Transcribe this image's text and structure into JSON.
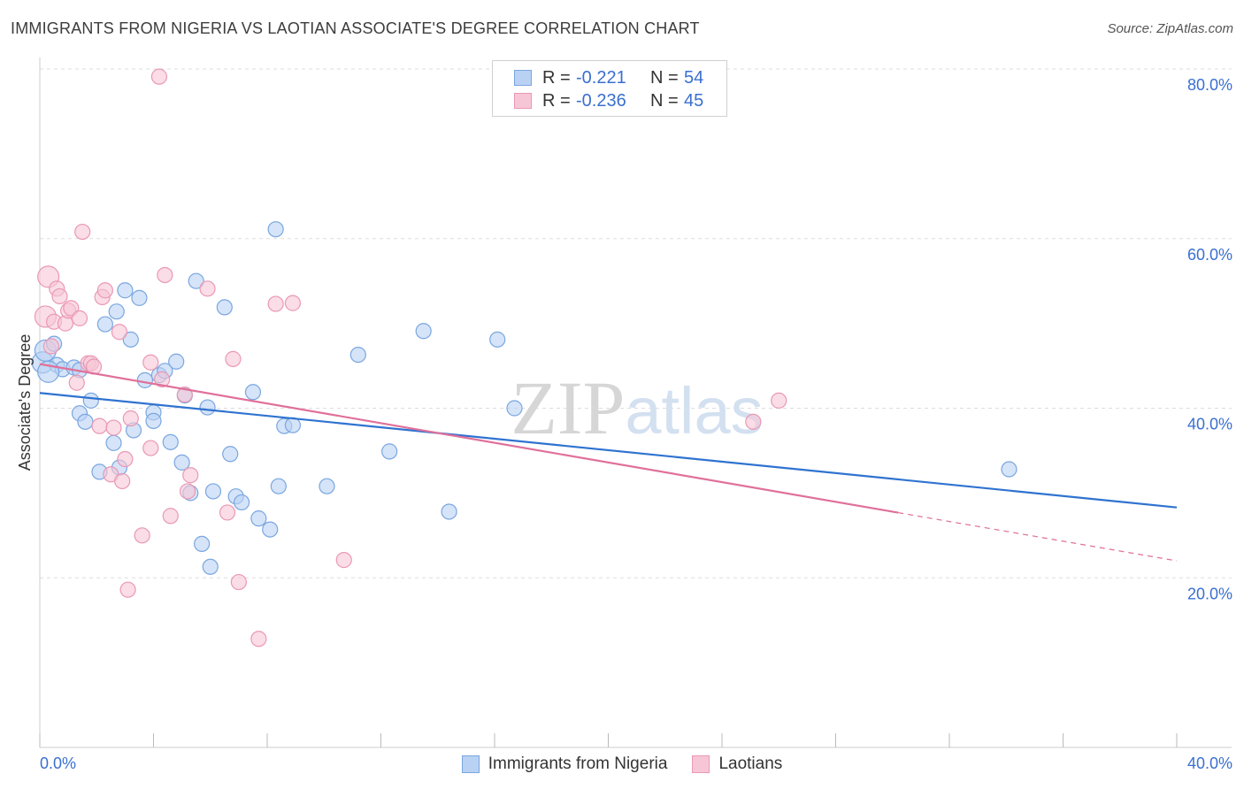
{
  "title": "IMMIGRANTS FROM NIGERIA VS LAOTIAN ASSOCIATE'S DEGREE CORRELATION CHART",
  "source": "Source: ZipAtlas.com",
  "legend": {
    "rows": [
      {
        "r_label": "R =",
        "r_value": "-0.221",
        "n_label": "N =",
        "n_value": "54"
      },
      {
        "r_label": "R =",
        "r_value": "-0.236",
        "n_label": "N =",
        "n_value": "45"
      }
    ]
  },
  "bottom_legend": [
    "Immigrants from Nigeria",
    "Laotians"
  ],
  "colors": {
    "blue_fill": "#b9d2f3",
    "blue_stroke": "#7aa6e0",
    "blue_line": "#2f73d0",
    "pink_fill": "#f7c6d6",
    "pink_stroke": "#ea98b5",
    "pink_line": "#e0709a",
    "axis_text": "#3a6fd0",
    "grid": "#dddddd"
  },
  "chart_data": {
    "type": "scatter",
    "title": "IMMIGRANTS FROM NIGERIA VS LAOTIAN ASSOCIATE'S DEGREE CORRELATION CHART",
    "xlabel": "",
    "ylabel": "Associate's Degree",
    "xlim": [
      0,
      40
    ],
    "ylim": [
      0,
      80
    ],
    "x_tick_labels": [
      "0.0%",
      "40.0%"
    ],
    "y_tick_labels": [
      "20.0%",
      "40.0%",
      "60.0%",
      "80.0%"
    ],
    "y_ticks": [
      20,
      40,
      60,
      80
    ],
    "grid": true,
    "watermark": "ZIPatlas",
    "series": [
      {
        "name": "Immigrants from Nigeria",
        "color": "#b9d2f3",
        "trend": {
          "x": [
            0,
            40
          ],
          "y": [
            41.8,
            28.3
          ],
          "dashed_from": null
        },
        "points": [
          [
            0.1,
            45.4
          ],
          [
            0.2,
            46.8
          ],
          [
            0.5,
            47.6
          ],
          [
            0.6,
            45.1
          ],
          [
            0.8,
            44.6
          ],
          [
            1.2,
            44.8
          ],
          [
            1.4,
            44.5
          ],
          [
            1.4,
            39.4
          ],
          [
            1.6,
            38.4
          ],
          [
            1.8,
            40.9
          ],
          [
            2.1,
            32.5
          ],
          [
            2.3,
            49.9
          ],
          [
            2.6,
            35.9
          ],
          [
            2.7,
            51.4
          ],
          [
            2.8,
            33.0
          ],
          [
            3.0,
            53.9
          ],
          [
            3.2,
            48.1
          ],
          [
            3.3,
            37.4
          ],
          [
            3.5,
            53.0
          ],
          [
            3.7,
            43.3
          ],
          [
            4.0,
            39.5
          ],
          [
            4.0,
            38.5
          ],
          [
            4.2,
            43.9
          ],
          [
            4.4,
            44.4
          ],
          [
            4.6,
            36.0
          ],
          [
            4.8,
            45.5
          ],
          [
            5.0,
            33.6
          ],
          [
            5.1,
            41.5
          ],
          [
            5.3,
            30.0
          ],
          [
            5.5,
            55.0
          ],
          [
            5.7,
            24.0
          ],
          [
            5.9,
            40.1
          ],
          [
            6.0,
            21.3
          ],
          [
            6.1,
            30.2
          ],
          [
            6.5,
            51.9
          ],
          [
            6.7,
            34.6
          ],
          [
            6.9,
            29.6
          ],
          [
            7.1,
            28.9
          ],
          [
            7.5,
            41.9
          ],
          [
            7.7,
            27.0
          ],
          [
            8.1,
            25.7
          ],
          [
            8.3,
            61.1
          ],
          [
            8.4,
            30.8
          ],
          [
            8.6,
            37.9
          ],
          [
            8.9,
            38.0
          ],
          [
            10.1,
            30.8
          ],
          [
            11.2,
            46.3
          ],
          [
            12.3,
            34.9
          ],
          [
            13.5,
            49.1
          ],
          [
            14.4,
            27.8
          ],
          [
            16.1,
            48.1
          ],
          [
            16.7,
            40.0
          ],
          [
            34.1,
            32.8
          ],
          [
            0.3,
            44.3
          ]
        ]
      },
      {
        "name": "Laotians",
        "color": "#f7c6d6",
        "trend": {
          "x": [
            0,
            40
          ],
          "y": [
            45.2,
            22.0
          ],
          "dashed_from": 30.2
        },
        "points": [
          [
            0.2,
            50.8
          ],
          [
            0.3,
            55.5
          ],
          [
            0.4,
            47.3
          ],
          [
            0.5,
            50.2
          ],
          [
            0.6,
            54.1
          ],
          [
            0.7,
            53.2
          ],
          [
            0.9,
            50.0
          ],
          [
            1.0,
            51.5
          ],
          [
            1.1,
            51.8
          ],
          [
            1.3,
            43.0
          ],
          [
            1.4,
            50.6
          ],
          [
            1.5,
            60.8
          ],
          [
            1.7,
            45.3
          ],
          [
            1.8,
            45.3
          ],
          [
            1.9,
            44.9
          ],
          [
            2.1,
            37.9
          ],
          [
            2.2,
            53.1
          ],
          [
            2.3,
            53.9
          ],
          [
            2.5,
            32.2
          ],
          [
            2.6,
            37.7
          ],
          [
            2.8,
            49.0
          ],
          [
            2.9,
            31.4
          ],
          [
            3.0,
            34.0
          ],
          [
            3.1,
            18.6
          ],
          [
            3.2,
            38.8
          ],
          [
            3.6,
            25.0
          ],
          [
            3.9,
            35.3
          ],
          [
            3.9,
            45.4
          ],
          [
            4.2,
            79.1
          ],
          [
            4.3,
            43.4
          ],
          [
            4.4,
            55.7
          ],
          [
            4.6,
            27.3
          ],
          [
            5.1,
            41.6
          ],
          [
            5.2,
            30.2
          ],
          [
            5.3,
            32.1
          ],
          [
            5.9,
            54.1
          ],
          [
            6.6,
            27.7
          ],
          [
            6.8,
            45.8
          ],
          [
            7.0,
            19.5
          ],
          [
            7.7,
            12.8
          ],
          [
            8.3,
            52.3
          ],
          [
            8.9,
            52.4
          ],
          [
            10.7,
            22.1
          ],
          [
            25.1,
            38.4
          ],
          [
            26.0,
            40.9
          ]
        ]
      }
    ]
  }
}
